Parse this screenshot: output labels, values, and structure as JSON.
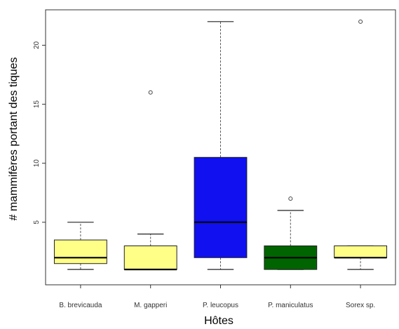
{
  "chart_data": {
    "type": "box",
    "xlabel": "Hôtes",
    "ylabel": "# mammifères portant des tiques",
    "ylim": [
      -0.3,
      23
    ],
    "yticks": [
      5,
      10,
      15,
      20
    ],
    "grid": false,
    "categories": [
      "B. brevicauda",
      "M. gapperi",
      "P. leucopus",
      "P. maniculatus",
      "Sorex sp."
    ],
    "boxes": [
      {
        "name": "B. brevicauda",
        "whisker_low": 1,
        "q1": 1.5,
        "median": 2,
        "q3": 3.5,
        "whisker_high": 5,
        "outliers": [],
        "color": "#FFFF88"
      },
      {
        "name": "M. gapperi",
        "whisker_low": 1,
        "q1": 1,
        "median": 1,
        "q3": 3,
        "whisker_high": 4,
        "outliers": [
          16
        ],
        "color": "#FFFF88"
      },
      {
        "name": "P. leucopus",
        "whisker_low": 1,
        "q1": 2,
        "median": 5,
        "q3": 10.5,
        "whisker_high": 22,
        "outliers": [],
        "color": "#1010F0"
      },
      {
        "name": "P. maniculatus",
        "whisker_low": 1,
        "q1": 1,
        "median": 2,
        "q3": 3,
        "whisker_high": 6,
        "outliers": [
          7
        ],
        "color": "#006400"
      },
      {
        "name": "Sorex sp.",
        "whisker_low": 1,
        "q1": 2,
        "median": 2,
        "q3": 3,
        "whisker_high": 3,
        "outliers": [
          22
        ],
        "color": "#FFFF88"
      }
    ]
  }
}
